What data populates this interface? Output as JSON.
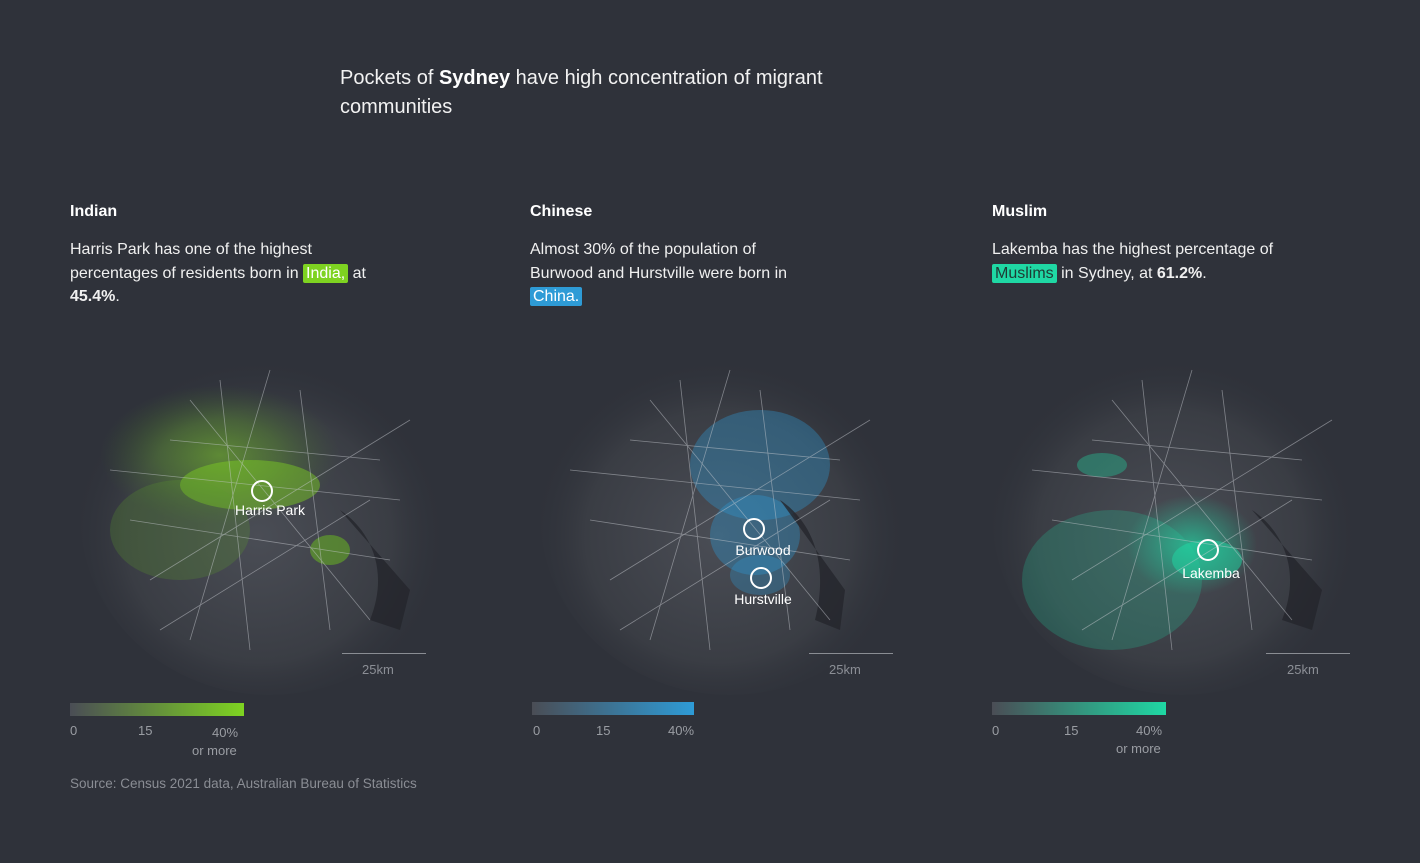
{
  "title": {
    "prefix": "Pockets of ",
    "bold": "Sydney",
    "suffix": " have high concentration of migrant communities"
  },
  "panels": [
    {
      "heading": "Indian",
      "desc_1": "Harris Park has one of the highest percentages of residents born in ",
      "highlight": "India,",
      "desc_2": " at ",
      "value": "45.4%",
      "desc_3": ".",
      "color": "#7ed321",
      "places": [
        {
          "name": "Harris Park"
        }
      ],
      "scale_label": "25km",
      "legend": {
        "ticks": [
          "0",
          "15",
          "40%"
        ],
        "note": "or more"
      }
    },
    {
      "heading": "Chinese",
      "desc_1": "Almost 30% of the population of Burwood and Hurstville were born in ",
      "highlight": "China.",
      "desc_2": "",
      "value": "",
      "desc_3": "",
      "color": "#2e9bd6",
      "places": [
        {
          "name": "Burwood"
        },
        {
          "name": "Hurstville"
        }
      ],
      "scale_label": "25km",
      "legend": {
        "ticks": [
          "0",
          "15",
          "40%"
        ],
        "note": ""
      }
    },
    {
      "heading": "Muslim",
      "desc_1": "Lakemba has the highest percentage of ",
      "highlight": "Muslims",
      "desc_2": " in Sydney, at ",
      "value": "61.2%",
      "desc_3": ".",
      "color": "#1fd8a4",
      "places": [
        {
          "name": "Lakemba"
        }
      ],
      "scale_label": "25km",
      "legend": {
        "ticks": [
          "0",
          "15",
          "40%"
        ],
        "note": "or more"
      }
    }
  ],
  "source": "Source: Census 2021 data, Australian Bureau of Statistics"
}
